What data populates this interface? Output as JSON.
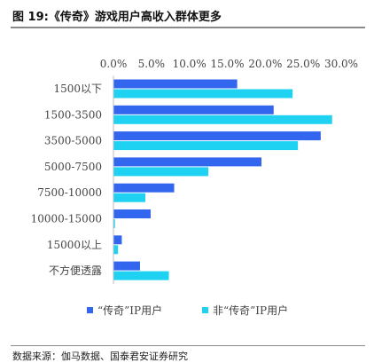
{
  "title": "图 19:《传奇》游戏用户高收入群体更多",
  "source": "数据来源：伽马数据、国泰君安证券研究",
  "chart_data": {
    "type": "bar",
    "orientation": "horizontal",
    "title": "",
    "xlabel": "",
    "ylabel": "",
    "xlim": [
      0,
      30
    ],
    "x_ticks": [
      "0.0%",
      "5.0%",
      "10.0%",
      "15.0%",
      "20.0%",
      "25.0%",
      "30.0%"
    ],
    "x_tick_values": [
      0,
      5,
      10,
      15,
      20,
      25,
      30
    ],
    "x_axis_position": "top",
    "grid": false,
    "legend_position": "bottom",
    "categories": [
      "1500以下",
      "1500-3500",
      "3500-5000",
      "5000-7500",
      "7500-10000",
      "10000-15000",
      "15000以上",
      "不方便透露"
    ],
    "series": [
      {
        "name": "“传奇”IP用户",
        "color": "#3366ee",
        "values": [
          16.3,
          21.1,
          27.3,
          19.5,
          8.0,
          4.9,
          1.1,
          3.5
        ]
      },
      {
        "name": "非“传奇”IP用户",
        "color": "#1fd2f2",
        "values": [
          23.6,
          28.8,
          24.3,
          12.5,
          4.2,
          0.2,
          0.6,
          7.3
        ]
      }
    ]
  }
}
